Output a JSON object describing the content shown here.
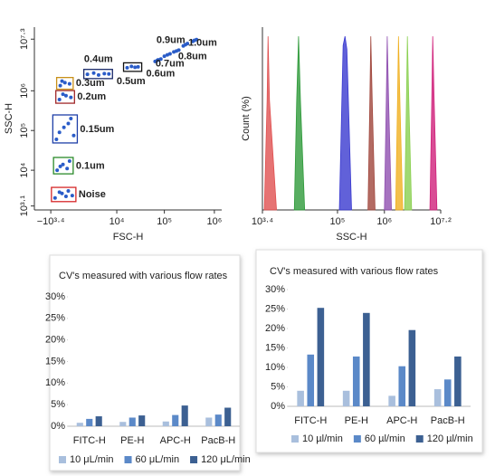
{
  "chart_data": [
    {
      "type": "scatter",
      "x_label": "FSC-H",
      "y_label": "SSC-H",
      "xscale": "symlog",
      "yscale": "log",
      "marker_color": "#2a5cc8",
      "xlim": [
        -7000,
        1400000
      ],
      "ylim": [
        1000,
        40000000
      ],
      "xticks": [
        {
          "value": -2512,
          "label": "−10³·⁴"
        },
        {
          "value": 10000,
          "label": "10⁴"
        },
        {
          "value": 100000,
          "label": "10⁵"
        },
        {
          "value": 1000000,
          "label": "10⁶"
        }
      ],
      "yticks": [
        {
          "value": 1259,
          "label": "10³·¹"
        },
        {
          "value": 10000,
          "label": "10⁴"
        },
        {
          "value": 100000,
          "label": "10⁵"
        },
        {
          "value": 1000000,
          "label": "10⁶"
        },
        {
          "value": 19952623,
          "label": "10⁷·³"
        }
      ],
      "series": [
        {
          "name": "Noise",
          "color": "#d62728",
          "x": [
            -1800,
            -900,
            -300,
            0,
            -1200,
            -500
          ],
          "values": [
            2000,
            2600,
            3000,
            2300,
            2800,
            2200
          ]
        },
        {
          "name": "0.1um",
          "color": "#2a8a2a",
          "x": [
            -1500,
            -800,
            -200,
            -1100,
            -400
          ],
          "values": [
            10000,
            14000,
            17000,
            12500,
            11000
          ]
        },
        {
          "name": "0.15um",
          "color": "#1f3fa8",
          "x": [
            -1600,
            -700,
            -100,
            -1200,
            -300,
            100
          ],
          "values": [
            60000,
            120000,
            200000,
            90000,
            150000,
            75000
          ]
        },
        {
          "name": "0.2um",
          "color": "#a0282a",
          "x": [
            -1200,
            -500,
            -100,
            -800
          ],
          "values": [
            600000,
            750000,
            680000,
            820000
          ]
        },
        {
          "name": "0.3um",
          "color": "#c8901a",
          "x": [
            -1100,
            -600,
            -200,
            -900
          ],
          "values": [
            1350000,
            1600000,
            1500000,
            1750000
          ]
        },
        {
          "name": "0.4um",
          "color": "#1a2a6a",
          "x": [
            1500,
            2500,
            3500,
            5000,
            6500
          ],
          "values": [
            2600000,
            2800000,
            2500000,
            2700000,
            2650000
          ]
        },
        {
          "name": "0.5um",
          "color": "#111111",
          "x": [
            17000,
            21000,
            25000,
            29000
          ],
          "values": [
            3800000,
            4100000,
            3900000,
            4000000
          ]
        },
        {
          "name": "0.6um",
          "color": "#a0307a",
          "x": [
            65000,
            75000,
            85000,
            72000
          ],
          "values": [
            5500000,
            6000000,
            6300000,
            5800000
          ]
        },
        {
          "name": "0.7um",
          "color": "#e08a10",
          "x": [
            100000,
            115000,
            130000
          ],
          "values": [
            7400000,
            8000000,
            8500000
          ]
        },
        {
          "name": "0.8um",
          "color": "#30c030",
          "x": [
            155000,
            175000,
            195000
          ],
          "values": [
            9500000,
            10000000,
            10600000
          ]
        },
        {
          "name": "0.9um",
          "color": "#8a2ad0",
          "x": [
            240000,
            265000,
            290000
          ],
          "values": [
            13500000,
            14500000,
            15500000
          ]
        },
        {
          "name": "1.0um",
          "color": "#e020b0",
          "x": [
            370000,
            400000,
            440000
          ],
          "values": [
            17500000,
            18600000,
            19500000
          ]
        }
      ]
    },
    {
      "type": "area",
      "x_label": "SSC-H",
      "y_label": "Count (%)",
      "xscale": "log",
      "xlim": [
        2512,
        15848932
      ],
      "ylim": [
        0,
        100
      ],
      "xticks": [
        {
          "value": 2512,
          "label": "10³·⁴"
        },
        {
          "value": 100000,
          "label": "10⁵"
        },
        {
          "value": 1000000,
          "label": "10⁶"
        },
        {
          "value": 15848932,
          "label": "10⁷·²"
        }
      ],
      "series": [
        {
          "color": "#e05050",
          "x": [
            2754,
            3162,
            3311,
            3548,
            5012
          ],
          "values": [
            0,
            60,
            95,
            60,
            0
          ]
        },
        {
          "color": "#2e9a3a",
          "x": [
            12023,
            13490,
            14791,
            16218,
            19953
          ],
          "values": [
            0,
            60,
            95,
            60,
            0
          ]
        },
        {
          "color": "#3a3ad0",
          "x": [
            109648,
            131826,
            144544,
            158489,
            199526
          ],
          "values": [
            0,
            90,
            95,
            88,
            0
          ]
        },
        {
          "color": "#a0463c",
          "x": [
            446684,
            489779,
            512861,
            549541,
            630957
          ],
          "values": [
            0,
            60,
            95,
            60,
            0
          ]
        },
        {
          "color": "#9050b0",
          "x": [
            1000000,
            1096478,
            1148154,
            1230269,
            1412538
          ],
          "values": [
            0,
            60,
            95,
            60,
            0
          ]
        },
        {
          "color": "#f0b020",
          "x": [
            1737801,
            1905461,
            1995262,
            2137962,
            2454709
          ],
          "values": [
            0,
            60,
            95,
            60,
            0
          ]
        },
        {
          "color": "#8ad050",
          "x": [
            2691535,
            2951209,
            3090295,
            3311311,
            3801894
          ],
          "values": [
            0,
            60,
            95,
            60,
            0
          ]
        },
        {
          "color": "#d0207a",
          "x": [
            9332543,
            10232930,
            10715193,
            11481536,
            13182567
          ],
          "values": [
            0,
            60,
            95,
            60,
            0
          ]
        }
      ]
    },
    {
      "type": "bar",
      "title": "CV's measured with various flow rates",
      "categories": [
        "FITC-H",
        "PE-H",
        "APC-H",
        "PacB-H"
      ],
      "ylim": [
        0,
        30
      ],
      "yticks": [
        {
          "value": 0,
          "label": "0%"
        },
        {
          "value": 5,
          "label": "5%"
        },
        {
          "value": 10,
          "label": "10%"
        },
        {
          "value": 15,
          "label": "15%"
        },
        {
          "value": 20,
          "label": "20%"
        },
        {
          "value": 25,
          "label": "25%"
        },
        {
          "value": 30,
          "label": "30%"
        }
      ],
      "series": [
        {
          "name": "10 μL/min",
          "color": "#a9bfdd",
          "values": [
            0.8,
            1.0,
            1.1,
            2.0
          ]
        },
        {
          "name": "60 μL/min",
          "color": "#5b89c8",
          "values": [
            1.7,
            2.0,
            2.6,
            2.7
          ]
        },
        {
          "name": "120 μL/min",
          "color": "#3c6092",
          "values": [
            2.3,
            2.5,
            4.8,
            4.3
          ]
        }
      ]
    },
    {
      "type": "bar",
      "title": "CV's measured with various flow rates",
      "categories": [
        "FITC-H",
        "PE-H",
        "APC-H",
        "PacB-H"
      ],
      "ylim": [
        0,
        30
      ],
      "yticks": [
        {
          "value": 0,
          "label": "0%"
        },
        {
          "value": 5,
          "label": "5%"
        },
        {
          "value": 10,
          "label": "10%"
        },
        {
          "value": 15,
          "label": "15%"
        },
        {
          "value": 20,
          "label": "20%"
        },
        {
          "value": 25,
          "label": "25%"
        },
        {
          "value": 30,
          "label": "30%"
        }
      ],
      "series": [
        {
          "name": "10 µl/min",
          "color": "#a9bfdd",
          "values": [
            4.0,
            4.0,
            2.7,
            4.4
          ]
        },
        {
          "name": "60 µl/min",
          "color": "#5b89c8",
          "values": [
            13.3,
            12.8,
            10.3,
            6.9
          ]
        },
        {
          "name": "120 µl/min",
          "color": "#3c6092",
          "values": [
            25.3,
            24.0,
            19.6,
            12.8
          ]
        }
      ]
    }
  ]
}
